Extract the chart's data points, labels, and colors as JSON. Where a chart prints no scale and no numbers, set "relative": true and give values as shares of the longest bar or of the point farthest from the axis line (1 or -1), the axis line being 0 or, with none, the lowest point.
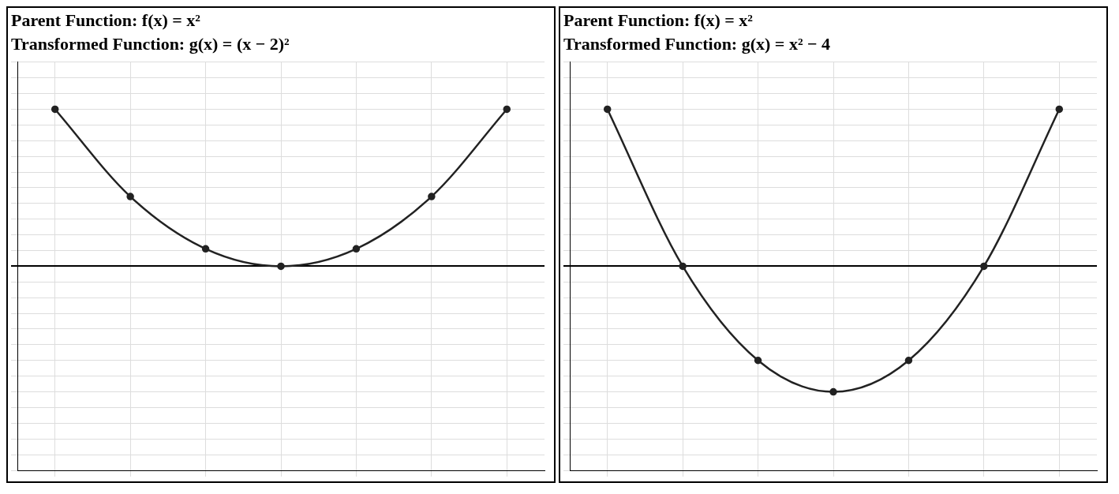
{
  "chart_data": [
    {
      "type": "line",
      "title": "Parent Function: f(x) = x²",
      "subtitle": "Transformed Function: g(x) = (x − 2)²",
      "relative": true,
      "categories": [
        null,
        null,
        null,
        null,
        null,
        null,
        null
      ],
      "color": "#222222",
      "values": [
        1,
        0.444,
        0.111,
        0,
        0.111,
        0.444,
        1
      ],
      "marker": "circle",
      "grid": true,
      "legend": false
    },
    {
      "type": "line",
      "title": "Parent Function: f(x) = x²",
      "subtitle": "Transformed Function: g(x) = x² − 4",
      "relative": true,
      "categories": [
        null,
        null,
        null,
        null,
        null,
        null,
        null
      ],
      "color": "#222222",
      "values": [
        1,
        0,
        -0.6,
        -0.8,
        -0.6,
        0,
        1
      ],
      "marker": "circle",
      "grid": true,
      "legend": false
    }
  ]
}
